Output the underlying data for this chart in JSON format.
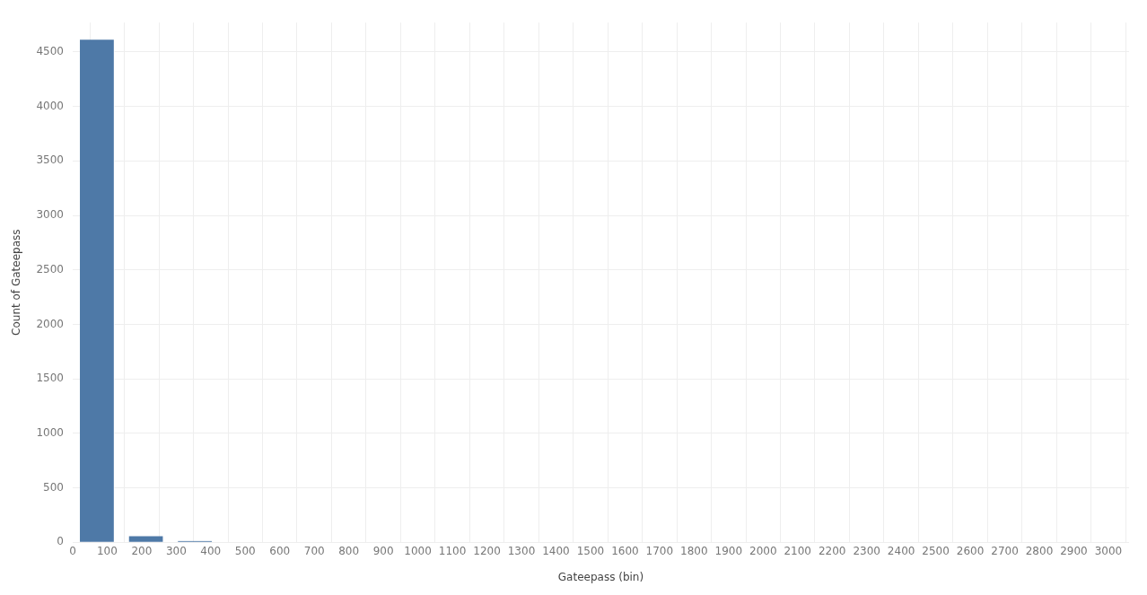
{
  "chart_data": {
    "type": "histogram",
    "xlabel": "Gateepass (bin)",
    "ylabel": "Count of Gateepass",
    "bins": [
      0,
      142,
      284,
      426,
      568
    ],
    "values": [
      4613,
      56,
      11,
      4
    ],
    "color": "#4e79a7",
    "xlim": [
      0,
      3060
    ],
    "xticks": [
      0,
      100,
      200,
      300,
      400,
      500,
      600,
      700,
      800,
      900,
      1000,
      1100,
      1200,
      1300,
      1400,
      1500,
      1600,
      1700,
      1800,
      1900,
      2000,
      2100,
      2200,
      2300,
      2400,
      2500,
      2600,
      2700,
      2800,
      2900,
      3000
    ],
    "ylim": [
      0,
      4770
    ],
    "yticks": [
      0,
      500,
      1000,
      1500,
      2000,
      2500,
      3000,
      3500,
      4000,
      4500
    ],
    "grid": true
  }
}
